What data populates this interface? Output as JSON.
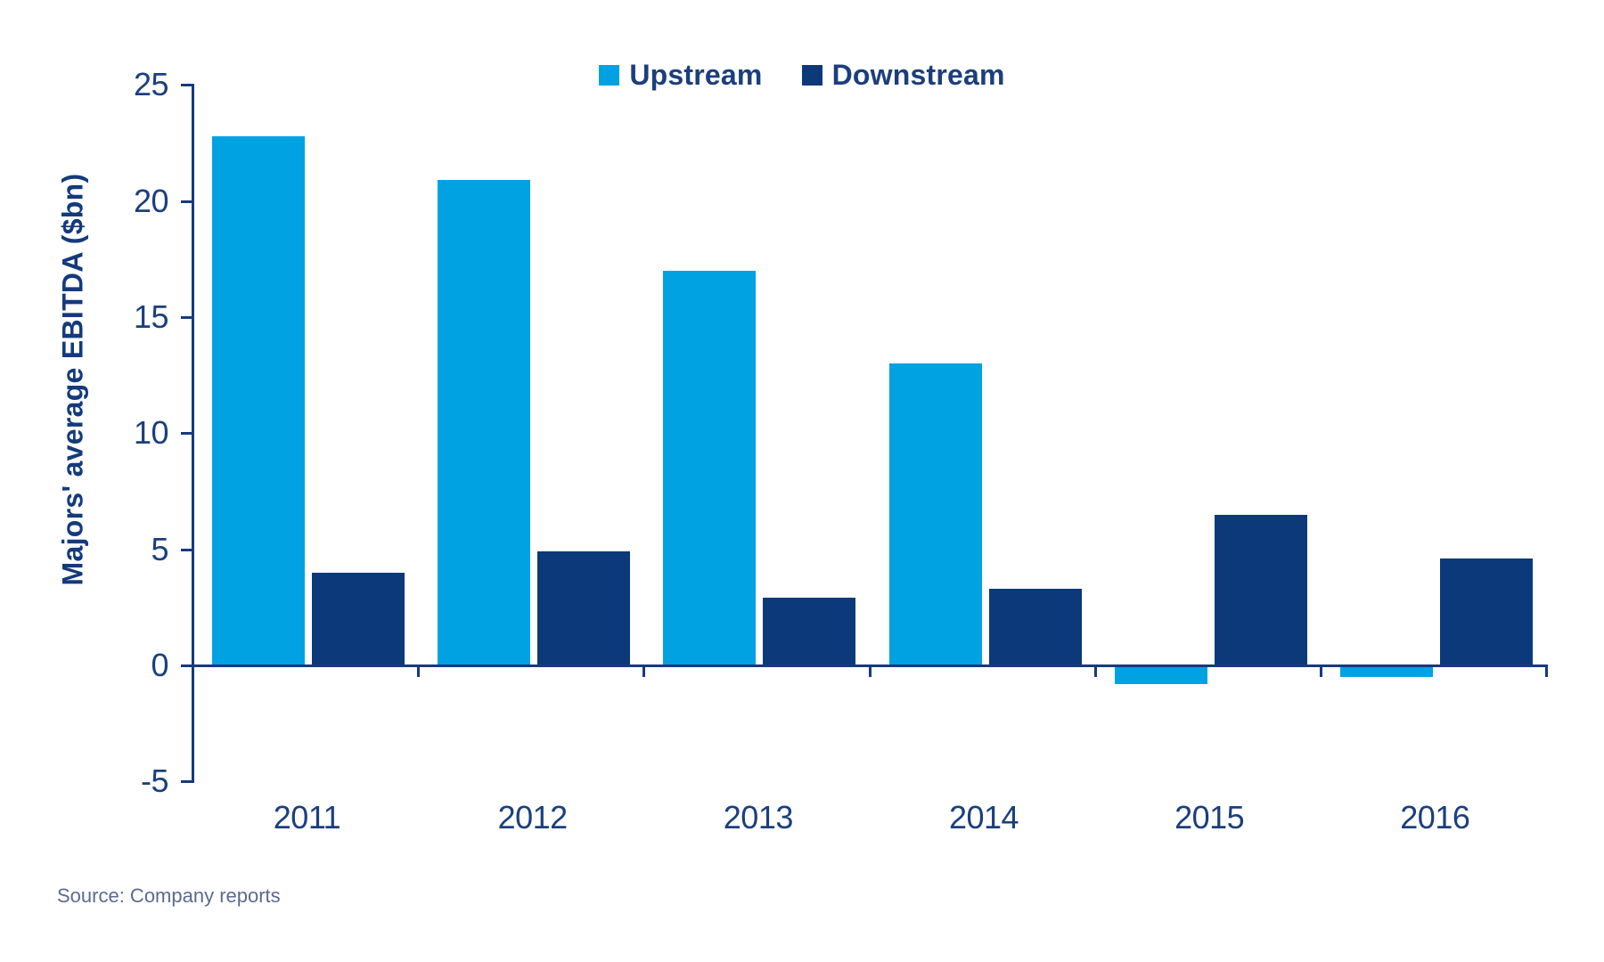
{
  "chart_data": {
    "type": "bar",
    "title": "",
    "categories": [
      "2011",
      "2012",
      "2013",
      "2014",
      "2015",
      "2016"
    ],
    "series": [
      {
        "name": "Upstream",
        "color": "#00a2e2",
        "values": [
          22.8,
          20.9,
          17.0,
          13.0,
          -0.8,
          -0.5
        ]
      },
      {
        "name": "Downstream",
        "color": "#0b3979",
        "values": [
          4.0,
          4.9,
          2.9,
          3.3,
          6.5,
          4.6
        ]
      }
    ],
    "xlabel": "",
    "ylabel": "Majors' average EBITDA ($bn)",
    "yticks": [
      25,
      20,
      15,
      10,
      5,
      0,
      -5
    ],
    "ylim": [
      -5,
      25
    ],
    "grid": false,
    "legend_position": "top-center"
  },
  "colors": {
    "axis": "#17397e",
    "tick_text": "#1b3f7e",
    "legend_text": "#1c3e7d",
    "source_text": "#5b6b8f",
    "background": "#ffffff"
  },
  "source": {
    "text": "Source: Company reports"
  }
}
